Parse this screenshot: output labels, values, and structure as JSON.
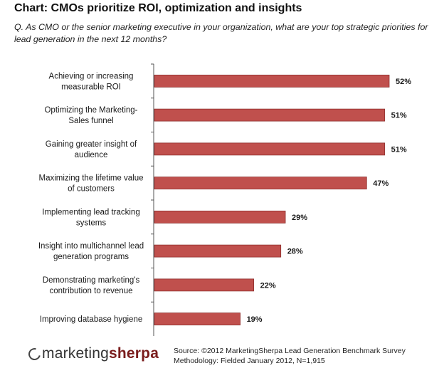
{
  "title": "Chart: CMOs prioritize ROI, optimization and insights",
  "question": "Q. As CMO or the senior marketing executive in your organization, what are your top strategic priorities for lead generation in the next 12 months?",
  "chart_data": {
    "type": "bar",
    "orientation": "horizontal",
    "categories": [
      [
        "Achieving or increasing",
        "measurable ROI"
      ],
      [
        "Optimizing the Marketing-",
        "Sales funnel"
      ],
      [
        "Gaining greater insight of",
        "audience"
      ],
      [
        "Maximizing the lifetime value",
        "of customers"
      ],
      [
        "Implementing lead tracking",
        "systems"
      ],
      [
        "Insight into multichannel lead",
        "generation programs"
      ],
      [
        "Demonstrating marketing's",
        "contribution to revenue"
      ],
      [
        "Improving database hygiene"
      ]
    ],
    "values": [
      52,
      51,
      51,
      47,
      29,
      28,
      22,
      19
    ],
    "value_labels": [
      "52%",
      "51%",
      "51%",
      "47%",
      "29%",
      "28%",
      "22%",
      "19%"
    ],
    "bar_color": "#c0504d",
    "bar_edge_color": "#8e2f2d",
    "xlim": [
      0,
      56
    ],
    "grid": false
  },
  "footer": {
    "logo_part1": "marketing",
    "logo_part2": "sherpa",
    "source_line1": "Source: ©2012 MarketingSherpa Lead Generation Benchmark Survey",
    "source_line2": "Methodology: Fielded January 2012, N=1,915"
  }
}
